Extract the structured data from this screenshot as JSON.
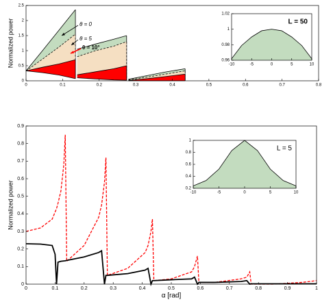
{
  "chart_data": [
    {
      "type": "area",
      "ylabel": "Normalized power",
      "x": [
        0,
        0.045,
        0.09,
        0.135,
        0.1375,
        0.14,
        0.19,
        0.24,
        0.275,
        0.2775,
        0.28,
        0.33,
        0.38,
        0.435
      ],
      "baseline": [
        0.33,
        0.27,
        0.19,
        0.07,
        null,
        0.1,
        0.06,
        0.03,
        0.02,
        null,
        0,
        0,
        0,
        0
      ],
      "edge": "#000000",
      "series": [
        {
          "name": "θ = 0",
          "color": "#c3dcbf",
          "values": [
            0.33,
            1.0,
            1.68,
            2.36,
            null,
            1.05,
            1.22,
            1.38,
            1.5,
            null,
            0.05,
            0.17,
            0.29,
            0.4
          ]
        },
        {
          "name": "θ = 5",
          "color": "#f5dfc2",
          "dash": true,
          "values": [
            0.33,
            0.72,
            1.12,
            1.55,
            null,
            0.8,
            1.0,
            1.15,
            1.3,
            null,
            0.03,
            0.12,
            0.22,
            0.33
          ]
        },
        {
          "name": "θ = 10°",
          "color": "#ff0000",
          "values": [
            0.33,
            0.45,
            0.56,
            0.7,
            null,
            0.2,
            0.3,
            0.4,
            0.5,
            null,
            0.01,
            0.07,
            0.14,
            0.22
          ]
        }
      ],
      "xlim": [
        0,
        0.8
      ],
      "xticks": [
        0,
        0.1,
        0.2,
        0.3,
        0.4,
        0.5,
        0.6,
        0.7,
        0.8
      ],
      "ylim": [
        0,
        2.5
      ],
      "yticks": [
        0,
        0.5,
        1,
        1.5,
        2,
        2.5
      ]
    },
    {
      "type": "area",
      "title": "L = 50",
      "edge": "#000000",
      "x": [
        -10,
        -7.5,
        -5,
        -2.5,
        0,
        2.5,
        5,
        7.5,
        10
      ],
      "series": [
        {
          "color": "#c3dcbf",
          "values": [
            0.962,
            0.979,
            0.99,
            0.998,
            1,
            0.998,
            0.99,
            0.979,
            0.962
          ]
        }
      ],
      "xlim": [
        -10,
        10
      ],
      "xticks": [
        -10,
        -5,
        0,
        5,
        10
      ],
      "ylim": [
        0.96,
        1.02
      ],
      "yticks": [
        0.96,
        0.98,
        1,
        1.02
      ]
    },
    {
      "type": "line",
      "xlabel": "α [rad]",
      "ylabel": "Normalized power",
      "x": [
        0,
        0.05,
        0.09,
        0.1,
        0.105,
        0.11,
        0.12,
        0.13,
        0.135,
        0.14,
        0.2,
        0.25,
        0.26,
        0.27,
        0.275,
        0.28,
        0.35,
        0.41,
        0.42,
        0.43,
        0.435,
        0.44,
        0.5,
        0.57,
        0.58,
        0.59,
        0.595,
        0.65,
        0.74,
        0.76,
        0.77,
        0.775,
        0.85,
        0.95,
        1
      ],
      "series": [
        {
          "color": "#ff0000",
          "dash": true,
          "values": [
            0.3,
            0.32,
            0.37,
            0.41,
            0.43,
            0.46,
            0.53,
            0.68,
            0.85,
            0.13,
            0.22,
            0.38,
            0.45,
            0.58,
            0.72,
            0.05,
            0.09,
            0.18,
            0.22,
            0.3,
            0.37,
            0.02,
            0.03,
            0.07,
            0.1,
            0.16,
            0.01,
            0.01,
            0.03,
            0.04,
            0.07,
            0,
            0,
            0.01,
            0.02
          ]
        },
        {
          "color": "#000000",
          "values": [
            0.23,
            0.228,
            0.22,
            0.17,
            0,
            0.125,
            0.13,
            0.132,
            0.133,
            0.135,
            0.155,
            0.18,
            0.19,
            0,
            0.05,
            0.05,
            0.06,
            0.08,
            0.09,
            0,
            0.02,
            0.02,
            0.025,
            0.03,
            0.04,
            0,
            0.01,
            0.01,
            0.015,
            0.02,
            0,
            0.002,
            0.002,
            0.002,
            0.002
          ]
        }
      ],
      "xlim": [
        0,
        1
      ],
      "xticks": [
        0,
        0.1,
        0.2,
        0.3,
        0.4,
        0.5,
        0.6,
        0.7,
        0.8,
        0.9,
        1
      ],
      "ylim": [
        0,
        0.9
      ],
      "yticks": [
        0,
        0.1,
        0.2,
        0.3,
        0.4,
        0.5,
        0.6,
        0.7,
        0.8,
        0.9
      ]
    },
    {
      "type": "area",
      "title": "L = 5",
      "edge": "#000000",
      "x": [
        -10,
        -7.5,
        -5,
        -2.5,
        0,
        2.5,
        5,
        7.5,
        10
      ],
      "series": [
        {
          "color": "#c3dcbf",
          "values": [
            0.24,
            0.33,
            0.52,
            0.83,
            1,
            0.83,
            0.52,
            0.33,
            0.24
          ]
        }
      ],
      "xlim": [
        -10,
        10
      ],
      "xticks": [
        -10,
        -5,
        0,
        5,
        10
      ],
      "ylim": [
        0.2,
        1
      ],
      "yticks": [
        0.2,
        0.4,
        0.6,
        0.8,
        1
      ]
    }
  ]
}
